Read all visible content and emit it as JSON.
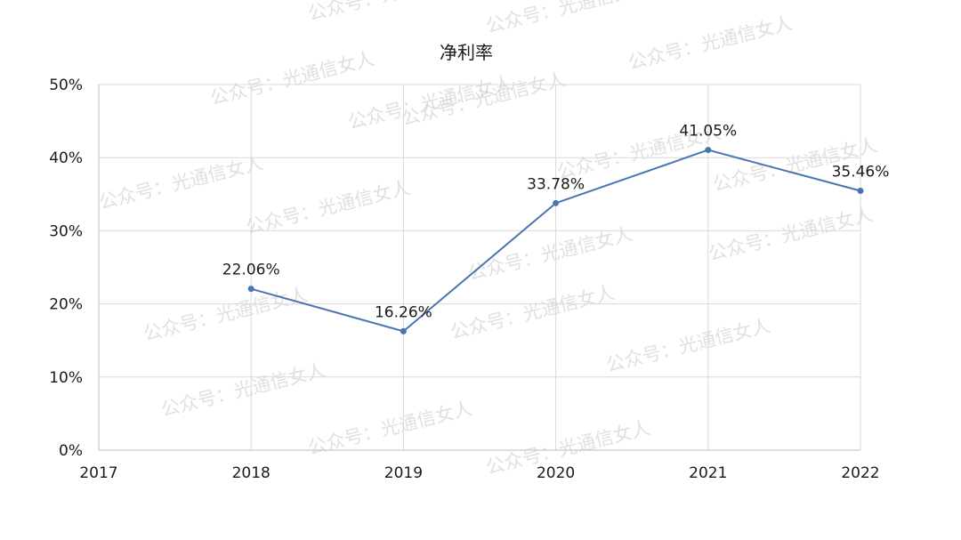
{
  "chart_data": {
    "type": "line",
    "title": "净利率",
    "x": [
      "2017",
      "2018",
      "2019",
      "2020",
      "2021",
      "2022"
    ],
    "series": [
      {
        "values": [
          null,
          22.06,
          16.26,
          33.78,
          41.05,
          35.46
        ],
        "labels": [
          "",
          "22.06%",
          "16.26%",
          "33.78%",
          "41.05%",
          "35.46%"
        ]
      }
    ],
    "ylim": [
      0,
      50
    ],
    "yticks": [
      0,
      10,
      20,
      30,
      40,
      50
    ],
    "ytick_labels": [
      "0%",
      "10%",
      "20%",
      "30%",
      "40%",
      "50%"
    ],
    "grid": true,
    "legend": "none",
    "line_color": "#4a76b0",
    "xlabel": "",
    "ylabel": ""
  },
  "watermark": {
    "text": "公众号：光通信女人"
  }
}
